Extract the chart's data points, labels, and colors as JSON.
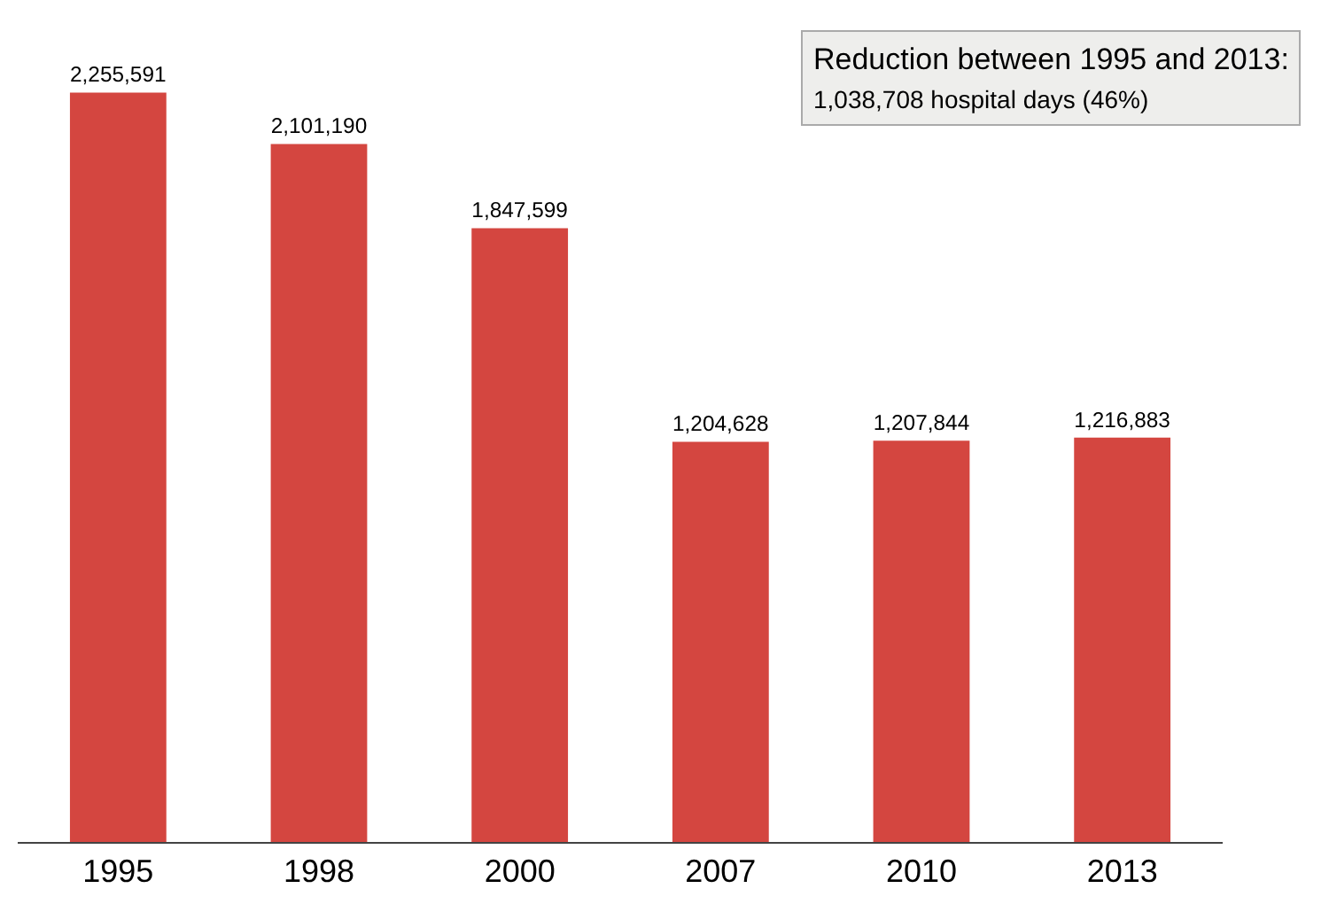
{
  "chart_data": {
    "type": "bar",
    "categories": [
      "1995",
      "1998",
      "2000",
      "2007",
      "2010",
      "2013"
    ],
    "values": [
      2255591,
      2101190,
      1847599,
      1204628,
      1207844,
      1216883
    ],
    "value_labels": [
      "2,255,591",
      "2,101,190",
      "1,847,599",
      "1,204,628",
      "1,207,844",
      "1,216,883"
    ],
    "color": "#d44640",
    "grid": false,
    "tick_labels": "x",
    "annotations": [
      "Reduction between 1995 and 2013:",
      "1,038,708 hospital days (46%)"
    ]
  }
}
